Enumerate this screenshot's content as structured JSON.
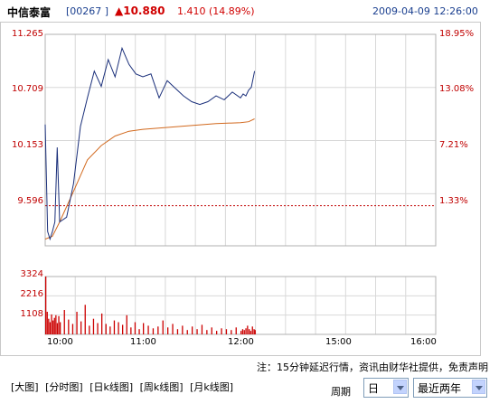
{
  "header": {
    "stock_name": "中信泰富",
    "stock_code": "[00267 ]",
    "price": "▲10.880",
    "change": "1.410 (14.89%)",
    "datetime": "2009-04-09 12:26:00"
  },
  "colors": {
    "price_line": "#1a2f7a",
    "avg_line": "#d2691e",
    "volume": "#cc0000",
    "axis_label": "#c00000",
    "grid": "#d8d8d8",
    "reference": "#c00000"
  },
  "chart_data": [
    {
      "type": "line",
      "title": "",
      "x_ticks": [
        "10:00",
        "11:00",
        "12:00",
        "15:00",
        "16:00"
      ],
      "y_left_ticks": [
        "11.265",
        "10.709",
        "10.153",
        "9.596"
      ],
      "y_right_ticks": [
        "18.95%",
        "13.08%",
        "7.21%",
        "1.33%"
      ],
      "ylim": [
        9.05,
        11.265
      ],
      "reference_value": 9.47,
      "series": [
        {
          "role": "price",
          "x": [
            "09:30",
            "09:35",
            "09:40",
            "09:45",
            "09:50",
            "09:55",
            "10:00",
            "10:05",
            "10:10",
            "10:15",
            "10:20",
            "10:25",
            "10:30",
            "10:35",
            "10:40",
            "10:45",
            "10:50",
            "10:55",
            "11:00",
            "11:05",
            "11:10",
            "11:15",
            "11:20",
            "11:25",
            "11:30",
            "11:35",
            "11:40",
            "11:45",
            "11:50",
            "11:55",
            "12:00",
            "12:05",
            "12:10",
            "12:15",
            "12:20",
            "12:25",
            "12:26"
          ],
          "values": [
            10.32,
            9.2,
            9.12,
            9.2,
            9.3,
            10.08,
            9.3,
            9.35,
            9.7,
            10.3,
            10.6,
            10.88,
            10.72,
            11.0,
            10.82,
            11.12,
            10.95,
            10.85,
            10.82,
            10.85,
            10.6,
            10.78,
            10.7,
            10.62,
            10.56,
            10.53,
            10.56,
            10.62,
            10.58,
            10.66,
            10.6,
            10.64,
            10.62,
            10.68,
            10.71,
            10.85,
            10.88
          ]
        },
        {
          "role": "average",
          "x": [
            "09:30",
            "09:45",
            "10:00",
            "10:10",
            "10:20",
            "10:30",
            "10:40",
            "10:50",
            "11:00",
            "11:15",
            "11:30",
            "11:45",
            "12:00",
            "12:15",
            "12:26"
          ],
          "values": [
            9.12,
            9.15,
            9.3,
            9.62,
            9.95,
            10.1,
            10.2,
            10.25,
            10.27,
            10.29,
            10.31,
            10.33,
            10.34,
            10.35,
            10.38
          ]
        }
      ]
    },
    {
      "type": "bar",
      "title": "",
      "y_ticks": [
        "3324",
        "2216",
        "1108"
      ],
      "ylim": [
        0,
        3324
      ],
      "x": [
        "09:30",
        "09:33",
        "09:36",
        "09:39",
        "09:42",
        "09:45",
        "09:48",
        "09:51",
        "09:54",
        "09:57",
        "10:00",
        "10:03",
        "10:06",
        "10:09",
        "10:12",
        "10:15",
        "10:18",
        "10:21",
        "10:24",
        "10:27",
        "10:30",
        "10:33",
        "10:36",
        "10:39",
        "10:42",
        "10:45",
        "10:48",
        "10:51",
        "10:54",
        "10:57",
        "11:00",
        "11:03",
        "11:06",
        "11:09",
        "11:12",
        "11:15",
        "11:18",
        "11:21",
        "11:24",
        "11:27",
        "11:30",
        "11:33",
        "11:36",
        "11:39",
        "11:42",
        "11:45",
        "11:48",
        "11:51",
        "11:54",
        "11:57",
        "12:00",
        "12:03",
        "12:06",
        "12:09",
        "12:12",
        "12:15",
        "12:18",
        "12:21",
        "12:24",
        "12:26"
      ],
      "values": [
        3324,
        1300,
        900,
        700,
        1150,
        800,
        950,
        1100,
        650,
        1050,
        700,
        1400,
        850,
        600,
        1300,
        750,
        1700,
        500,
        900,
        650,
        1200,
        600,
        450,
        800,
        700,
        550,
        1100,
        400,
        700,
        300,
        650,
        500,
        350,
        450,
        800,
        400,
        600,
        300,
        500,
        250,
        450,
        300,
        550,
        250,
        400,
        200,
        350,
        300,
        250,
        400,
        200,
        300,
        250,
        350,
        500,
        300,
        200,
        450,
        300,
        250
      ]
    }
  ],
  "footer": {
    "note": "注：15分钟延迟行情，资讯由财华社提供，免责声明",
    "links": [
      "[大图]",
      "[分时图]",
      "[日k线图]",
      "[周k线图]",
      "[月k线图]"
    ],
    "period_label": "周期",
    "period_value": "日",
    "range_value": "最近两年"
  }
}
